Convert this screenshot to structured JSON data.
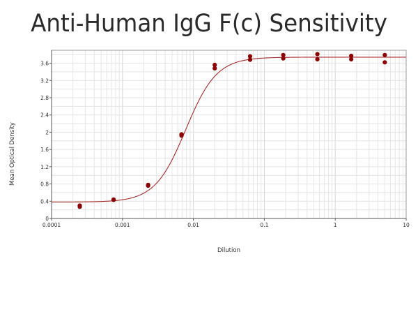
{
  "chart_data": {
    "type": "scatter",
    "title": "Anti-Human IgG F(c) Sensitivity",
    "xlabel": "Dilution",
    "ylabel": "Mean Optical Density",
    "x_scale": "log",
    "xlim": [
      0.0001,
      10
    ],
    "ylim": [
      0,
      3.9
    ],
    "x_ticks": [
      {
        "value": 0.0001,
        "label": "0.0001"
      },
      {
        "value": 0.001,
        "label": "0.001"
      },
      {
        "value": 0.01,
        "label": "0.01"
      },
      {
        "value": 0.1,
        "label": "0.1"
      },
      {
        "value": 1,
        "label": "1"
      },
      {
        "value": 10,
        "label": "10"
      }
    ],
    "y_ticks": [
      {
        "value": 0,
        "label": "0"
      },
      {
        "value": 0.4,
        "label": "0.4"
      },
      {
        "value": 0.8,
        "label": "0.8"
      },
      {
        "value": 1.2,
        "label": "1.2"
      },
      {
        "value": 1.6,
        "label": "1.6"
      },
      {
        "value": 2,
        "label": "2"
      },
      {
        "value": 2.4,
        "label": "2.4"
      },
      {
        "value": 2.8,
        "label": "2.8"
      },
      {
        "value": 3.2,
        "label": "3.2"
      },
      {
        "value": 3.6,
        "label": "3.6"
      }
    ],
    "grid": true,
    "series": [
      {
        "type": "scatter",
        "color": "#8b0000",
        "points": [
          {
            "x": 0.00025,
            "y": 0.3
          },
          {
            "x": 0.00025,
            "y": 0.27
          },
          {
            "x": 0.00075,
            "y": 0.44
          },
          {
            "x": 0.00075,
            "y": 0.43
          },
          {
            "x": 0.0023,
            "y": 0.78
          },
          {
            "x": 0.0023,
            "y": 0.76
          },
          {
            "x": 0.0068,
            "y": 1.95
          },
          {
            "x": 0.0068,
            "y": 1.92
          },
          {
            "x": 0.02,
            "y": 3.56
          },
          {
            "x": 0.02,
            "y": 3.48
          },
          {
            "x": 0.063,
            "y": 3.76
          },
          {
            "x": 0.063,
            "y": 3.68
          },
          {
            "x": 0.185,
            "y": 3.79
          },
          {
            "x": 0.185,
            "y": 3.71
          },
          {
            "x": 0.56,
            "y": 3.81
          },
          {
            "x": 0.56,
            "y": 3.69
          },
          {
            "x": 1.68,
            "y": 3.77
          },
          {
            "x": 1.68,
            "y": 3.69
          },
          {
            "x": 5.0,
            "y": 3.79
          },
          {
            "x": 5.0,
            "y": 3.62
          }
        ]
      },
      {
        "type": "line",
        "color": "#a52a2a",
        "fit": "4PL",
        "fit_params": {
          "bottom": 0.38,
          "top": 3.74,
          "ec50": 0.0078,
          "hill": 2.0
        }
      }
    ]
  }
}
